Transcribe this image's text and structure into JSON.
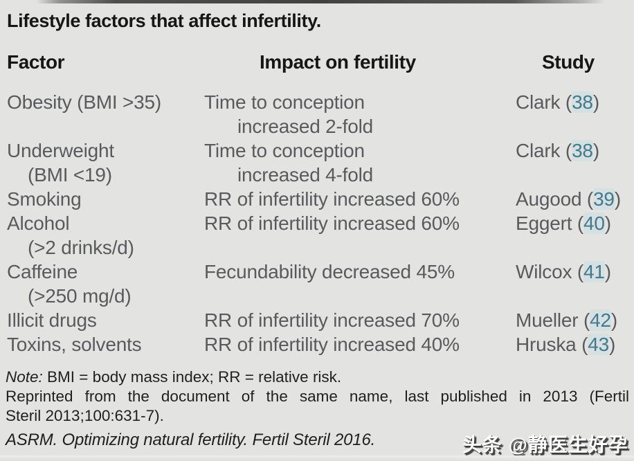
{
  "title": "Lifestyle factors that affect infertility.",
  "table": {
    "headers": {
      "factor": "Factor",
      "impact": "Impact on fertility",
      "study": "Study"
    },
    "rows": [
      {
        "factor_lines": [
          "Obesity (BMI >35)"
        ],
        "impact_lines": [
          "Time to conception",
          "increased 2-fold"
        ],
        "study": "Clark",
        "ref": "38"
      },
      {
        "factor_lines": [
          "Underweight",
          "(BMI <19)"
        ],
        "impact_lines": [
          "Time to conception",
          "increased 4-fold"
        ],
        "study": "Clark",
        "ref": "38"
      },
      {
        "factor_lines": [
          "Smoking"
        ],
        "impact_lines": [
          "RR of infertility increased 60%"
        ],
        "study": "Augood",
        "ref": "39"
      },
      {
        "factor_lines": [
          "Alcohol",
          "(>2 drinks/d)"
        ],
        "impact_lines": [
          "RR of infertility increased 60%"
        ],
        "study": "Eggert",
        "ref": "40"
      },
      {
        "factor_lines": [
          "Caffeine",
          "(>250 mg/d)"
        ],
        "impact_lines": [
          "Fecundability decreased 45%"
        ],
        "study": "Wilcox",
        "ref": "41"
      },
      {
        "factor_lines": [
          "Illicit drugs"
        ],
        "impact_lines": [
          "RR of infertility increased 70%"
        ],
        "study": "Mueller",
        "ref": "42"
      },
      {
        "factor_lines": [
          "Toxins, solvents"
        ],
        "impact_lines": [
          "RR of infertility increased 40%"
        ],
        "study": "Hruska",
        "ref": "43"
      }
    ]
  },
  "notes": {
    "note_label": "Note:",
    "note_text": " BMI = body mass index; RR = relative risk.",
    "reprinted_lines": [
      "Reprinted from the document of the same name, last published in 2013 (Fertil",
      "Steril 2013;100:631-7)."
    ],
    "citation": "ASRM. Optimizing natural fertility. Fertil Steril 2016."
  },
  "watermark": "头条 @静医生好孕",
  "colors": {
    "background": "#e3e3e1",
    "heading_text": "#161616",
    "body_text": "#595a5e",
    "note_text": "#1f1f1f",
    "reference_accent": "#44798d",
    "watermark_fill": "#fdfdfd",
    "watermark_shadow": "#343434"
  }
}
